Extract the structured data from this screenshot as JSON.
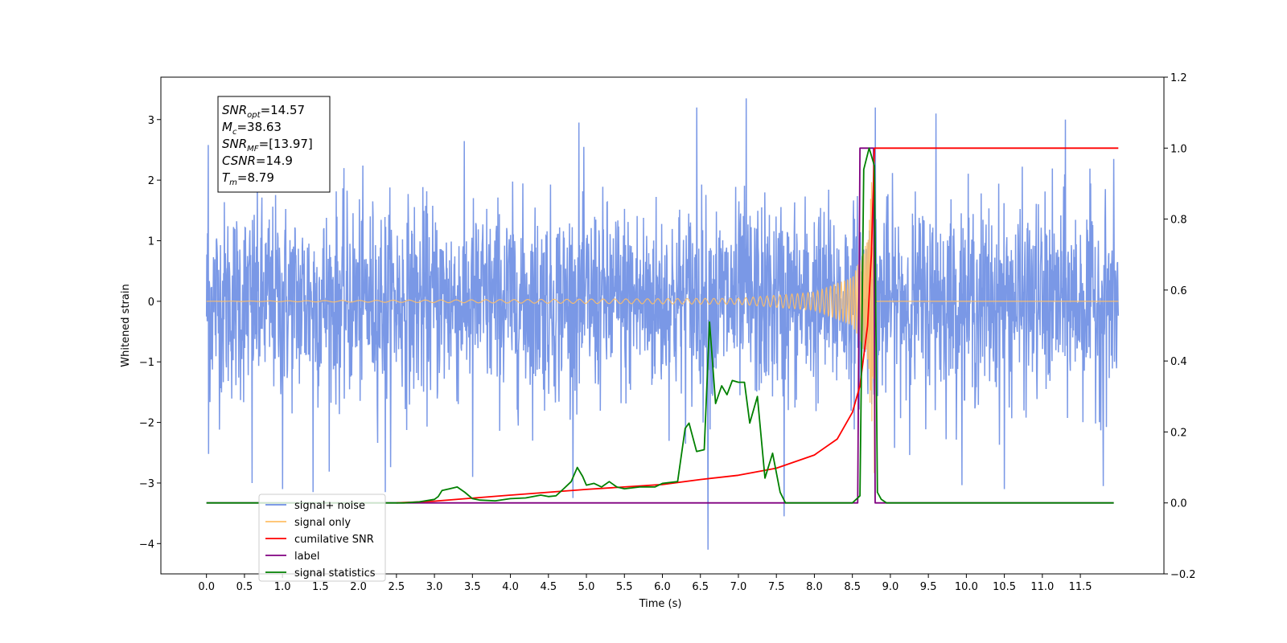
{
  "chart_data": {
    "type": "line",
    "xlabel": "Time (s)",
    "ylabel": "Whitened strain",
    "y2label": "",
    "xlim": [
      -0.6,
      12.6
    ],
    "ylim": [
      -4.5,
      3.7
    ],
    "y2lim": [
      -0.2,
      1.2
    ],
    "x_ticks": [
      "0.0",
      "0.5",
      "1.0",
      "1.5",
      "2.0",
      "2.5",
      "3.0",
      "3.5",
      "4.0",
      "4.5",
      "5.0",
      "5.5",
      "6.0",
      "6.5",
      "7.0",
      "7.5",
      "8.0",
      "8.5",
      "9.0",
      "9.5",
      "10.0",
      "10.5",
      "11.0",
      "11.5"
    ],
    "y_ticks": [
      "3",
      "2",
      "1",
      "0",
      "−1",
      "−2",
      "−3",
      "−4"
    ],
    "y2_ticks": [
      "1.2",
      "1.0",
      "0.8",
      "0.6",
      "0.4",
      "0.2",
      "0.0",
      "−0.2"
    ],
    "annotation": {
      "lines": [
        {
          "sym": "SNR",
          "sub": "opt",
          "value": "=14.57"
        },
        {
          "sym": "M",
          "sub": "c",
          "value": "=38.63"
        },
        {
          "sym": "SNR",
          "sub": "MF",
          "value": "=[13.97]"
        },
        {
          "sym": "CSNR",
          "sub": "",
          "value": "=14.9"
        },
        {
          "sym": "T",
          "sub": "m",
          "value": "=8.79"
        }
      ]
    },
    "legend": {
      "placement": "lower-left",
      "entries": [
        {
          "label": "signal+ noise",
          "color": "#6b8de3"
        },
        {
          "label": "signal only",
          "color": "#ffbf66"
        },
        {
          "label": "cumilative SNR",
          "color": "#ff0000"
        },
        {
          "label": "label",
          "color": "#800080"
        },
        {
          "label": "signal statistics",
          "color": "#008000"
        }
      ]
    },
    "series": [
      {
        "name": "signal+ noise",
        "axis": "left",
        "color": "#6b8de3",
        "description_stats": {
          "x_start": 0.0,
          "x_end": 12.0,
          "mean": 0.0,
          "std": 0.85,
          "min": -4.1,
          "max": 3.35
        },
        "extremes": [
          [
            0.02,
            2.58
          ],
          [
            0.02,
            -2.52
          ],
          [
            0.6,
            -3.0
          ],
          [
            1.0,
            -3.1
          ],
          [
            1.4,
            -3.15
          ],
          [
            2.35,
            -3.15
          ],
          [
            3.5,
            -2.9
          ],
          [
            4.9,
            2.95
          ],
          [
            6.6,
            -4.1
          ],
          [
            6.45,
            3.2
          ],
          [
            7.1,
            3.35
          ],
          [
            7.6,
            -3.55
          ],
          [
            8.8,
            3.2
          ],
          [
            9.6,
            3.1
          ],
          [
            10.5,
            -3.1
          ],
          [
            11.3,
            3.0
          ],
          [
            11.8,
            -3.05
          ]
        ]
      },
      {
        "name": "signal only",
        "axis": "left",
        "color": "#ffbf66",
        "x": [
          0.0,
          7.0,
          8.0,
          8.5,
          8.7,
          8.79,
          8.8,
          12.0
        ],
        "envelope": [
          0.0,
          0.05,
          0.15,
          0.4,
          1.0,
          2.95,
          0.0,
          0.0
        ]
      },
      {
        "name": "cumilative SNR",
        "axis": "right",
        "color": "#ff0000",
        "x": [
          2.5,
          3.0,
          4.0,
          5.0,
          6.0,
          6.5,
          7.0,
          7.5,
          8.0,
          8.3,
          8.5,
          8.6,
          8.7,
          8.75,
          8.79,
          12.0
        ],
        "y": [
          0.0,
          0.005,
          0.022,
          0.038,
          0.052,
          0.066,
          0.078,
          0.098,
          0.135,
          0.18,
          0.255,
          0.33,
          0.5,
          0.7,
          1.0,
          1.0
        ]
      },
      {
        "name": "label",
        "axis": "right",
        "color": "#800080",
        "x": [
          0.0,
          8.57,
          8.6,
          8.78,
          8.8,
          11.94
        ],
        "y": [
          0.0,
          0.0,
          1.0,
          1.0,
          0.0,
          0.0
        ]
      },
      {
        "name": "signal statistics",
        "axis": "right",
        "color": "#008000",
        "x": [
          0.0,
          2.6,
          2.8,
          3.0,
          3.05,
          3.1,
          3.2,
          3.3,
          3.4,
          3.5,
          3.6,
          3.8,
          4.0,
          4.2,
          4.4,
          4.5,
          4.6,
          4.7,
          4.8,
          4.88,
          4.95,
          5.0,
          5.1,
          5.2,
          5.3,
          5.4,
          5.5,
          5.7,
          5.9,
          6.0,
          6.2,
          6.3,
          6.35,
          6.45,
          6.55,
          6.62,
          6.7,
          6.78,
          6.85,
          6.92,
          7.0,
          7.08,
          7.15,
          7.25,
          7.35,
          7.45,
          7.55,
          7.62,
          7.7,
          8.5,
          8.6,
          8.65,
          8.72,
          8.79,
          8.83,
          8.88,
          8.95,
          11.94
        ],
        "y": [
          0.0,
          0.0,
          0.003,
          0.01,
          0.018,
          0.035,
          0.04,
          0.045,
          0.03,
          0.012,
          0.008,
          0.006,
          0.012,
          0.014,
          0.022,
          0.018,
          0.02,
          0.04,
          0.06,
          0.1,
          0.075,
          0.05,
          0.055,
          0.045,
          0.06,
          0.045,
          0.04,
          0.045,
          0.045,
          0.055,
          0.06,
          0.21,
          0.225,
          0.145,
          0.15,
          0.51,
          0.28,
          0.33,
          0.305,
          0.345,
          0.34,
          0.34,
          0.225,
          0.3,
          0.07,
          0.14,
          0.03,
          0.0,
          0.0,
          0.0,
          0.02,
          0.94,
          1.0,
          0.95,
          0.03,
          0.01,
          0.0,
          0.0
        ]
      }
    ]
  }
}
